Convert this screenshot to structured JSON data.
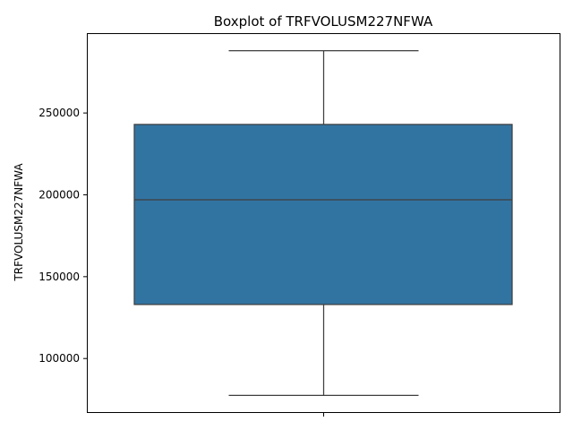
{
  "chart_data": {
    "type": "box",
    "title": "Boxplot of TRFVOLUSM227NFWA",
    "xlabel": "",
    "ylabel": "TRFVOLUSM227NFWA",
    "ylim": [
      67000,
      298500
    ],
    "yticks": [
      100000,
      150000,
      200000,
      250000
    ],
    "ytick_labels": [
      "100000",
      "150000",
      "200000",
      "250000"
    ],
    "grid": false,
    "legend": "none",
    "series": [
      {
        "whisker_low": 77500,
        "q1": 133000,
        "median": 197000,
        "q3": 243000,
        "whisker_high": 288000
      }
    ],
    "colors": {
      "box_fill": "#3274a1",
      "line": "#3f3f3f",
      "axis": "#000000"
    }
  }
}
